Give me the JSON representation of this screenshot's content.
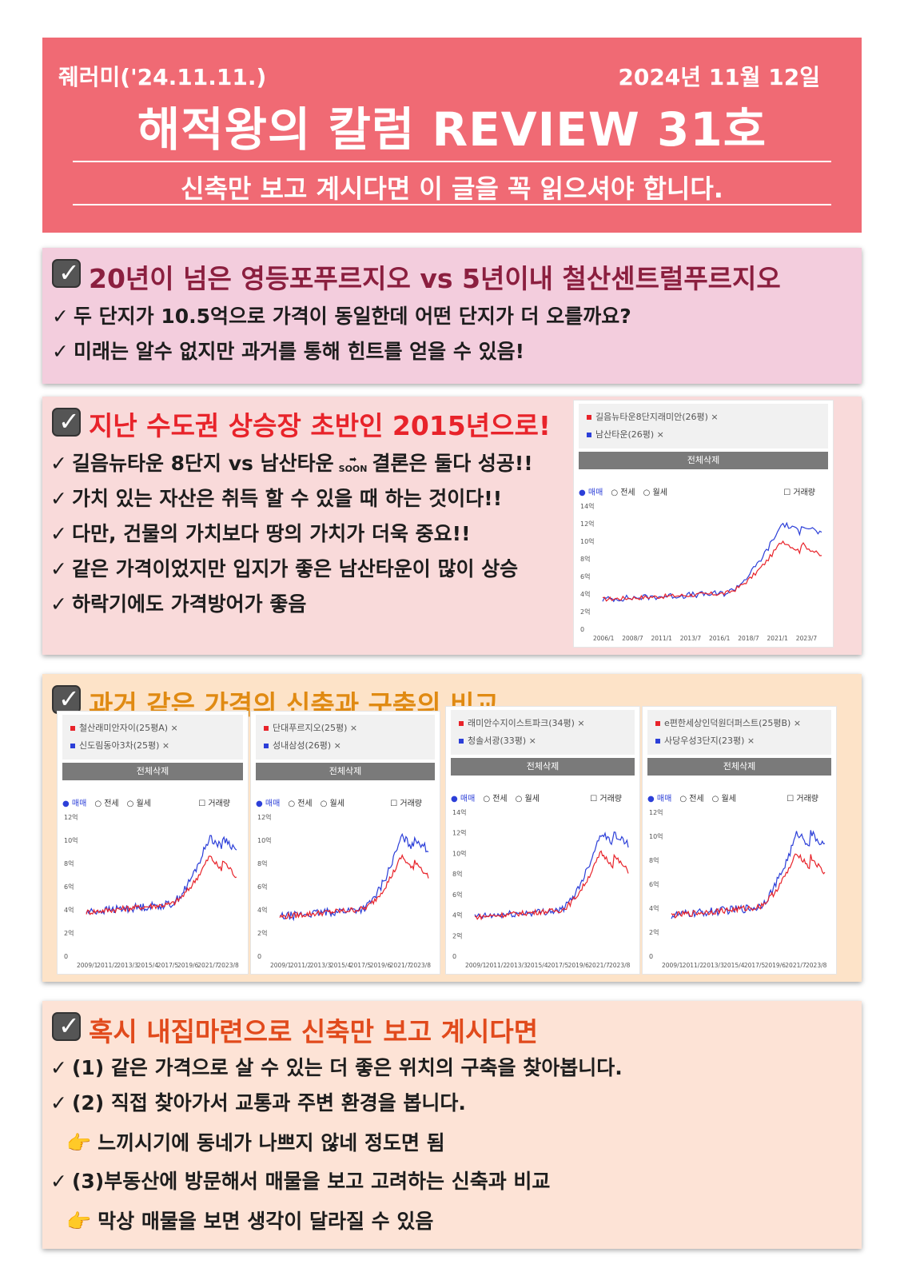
{
  "header": {
    "top_left": "줴러미('24.11.11.)",
    "top_right": "2024년 11월 12일",
    "title": "해적왕의 칼럼 REVIEW 31호",
    "subtitle": "신축만 보고 계시다면 이 글을 꼭 읽으셔야 합니다."
  },
  "section1": {
    "title": "20년이 넘은 영등포푸르지오 vs 5년이내 철산센트럴푸르지오",
    "title_color": "#8b1f3f",
    "lines": [
      "두 단지가 10.5억으로 가격이 동일한데 어떤 단지가 더 오를까요?",
      "미래는 알수 없지만 과거를 통해 힌트를 얻을 수 있음!"
    ]
  },
  "section2": {
    "title": "지난 수도권 상승장 초반인 2015년으로!",
    "title_color": "#e8232a",
    "line1_a": "길음뉴타운 8단지 vs 남산타운",
    "soon": "SOON",
    "line1_b": "결론은 둘다 성공!!",
    "lines": [
      "가치 있는 자산은 취득 할 수 있을 때 하는 것이다!!",
      "다만, 건물의 가치보다 땅의 가치가 더욱 중요!!",
      "같은 가격이었지만 입지가 좋은 남산타운이 많이 상승",
      "하락기에도 가격방어가 좋음"
    ]
  },
  "section3": {
    "title": "과거 같은 가격의 신축과 구축의 비교",
    "title_color": "#e08a12"
  },
  "section4": {
    "title": "혹시 내집마련으로 신축만 보고 계시다면",
    "title_color": "#e14a1c",
    "l1": "(1) 같은 가격으로 살 수 있는 더 좋은 위치의 구축을 찾아봅니다.",
    "l2": "(2) 직접 찾아가서 교통과 주변 환경을 봅니다.",
    "l3": "느끼시기에 동네가 나쁘지 않네 정도면 됨",
    "l4": "(3)부동산에 방문해서 매물을 보고 고려하는 신축과 비교",
    "l5": "막상 매물을 보면 생각이 달라질 수 있음"
  },
  "ui": {
    "check": "✓",
    "tick": "✓",
    "point": "👉",
    "btn_all": "전체삭제",
    "r1": "매매",
    "r2": "전세",
    "r3": "월세",
    "vol": "거래량",
    "series_colors": [
      "#e8232a",
      "#2c3fd8"
    ]
  },
  "chart_data": [
    {
      "type": "line",
      "series": [
        {
          "name": "길음뉴타운8단지래미안(26평) ×"
        },
        {
          "name": "남산타운(26평) ×"
        }
      ],
      "yticks": [
        "14억",
        "12억",
        "10억",
        "8억",
        "6억",
        "4억",
        "2억",
        "0"
      ],
      "xticks": [
        "2006/1",
        "2008/7",
        "2011/1",
        "2013/7",
        "2016/1",
        "2018/7",
        "2021/1",
        "2023/7"
      ],
      "ylim": [
        0,
        14
      ]
    },
    {
      "type": "line",
      "series": [
        {
          "name": "철산래미안자이(25평A) ×"
        },
        {
          "name": "신도림동아3차(25평) ×"
        }
      ],
      "yticks": [
        "12억",
        "10억",
        "8억",
        "6억",
        "4억",
        "2억",
        "0"
      ],
      "xticks": [
        "2009/1",
        "2011/2",
        "2013/3",
        "2015/4",
        "2017/5",
        "2019/6",
        "2021/7",
        "2023/8"
      ],
      "ylim": [
        0,
        12
      ]
    },
    {
      "type": "line",
      "series": [
        {
          "name": "단대푸르지오(25평) ×"
        },
        {
          "name": "성내삼성(26평) ×"
        }
      ],
      "yticks": [
        "12억",
        "10억",
        "8억",
        "6억",
        "4억",
        "2억",
        "0"
      ],
      "xticks": [
        "2009/1",
        "2011/2",
        "2013/3",
        "2015/4",
        "2017/5",
        "2019/6",
        "2021/7",
        "2023/8"
      ],
      "ylim": [
        0,
        12
      ]
    },
    {
      "type": "line",
      "series": [
        {
          "name": "래미안수지이스트파크(34평) ×"
        },
        {
          "name": "청솔서광(33평) ×"
        }
      ],
      "yticks": [
        "14억",
        "12억",
        "10억",
        "8억",
        "6억",
        "4억",
        "2억",
        "0"
      ],
      "xticks": [
        "2009/1",
        "2011/2",
        "2013/3",
        "2015/4",
        "2017/5",
        "2019/6",
        "2021/7",
        "2023/8"
      ],
      "ylim": [
        0,
        14
      ]
    },
    {
      "type": "line",
      "series": [
        {
          "name": "e편한세상인덕원더퍼스트(25평B) ×"
        },
        {
          "name": "사당우성3단지(23평) ×"
        }
      ],
      "yticks": [
        "12억",
        "10억",
        "8억",
        "6억",
        "4억",
        "2억",
        "0"
      ],
      "xticks": [
        "2009/1",
        "2011/2",
        "2013/3",
        "2015/4",
        "2017/5",
        "2019/6",
        "2021/7",
        "2023/8"
      ],
      "ylim": [
        0,
        12
      ]
    }
  ]
}
